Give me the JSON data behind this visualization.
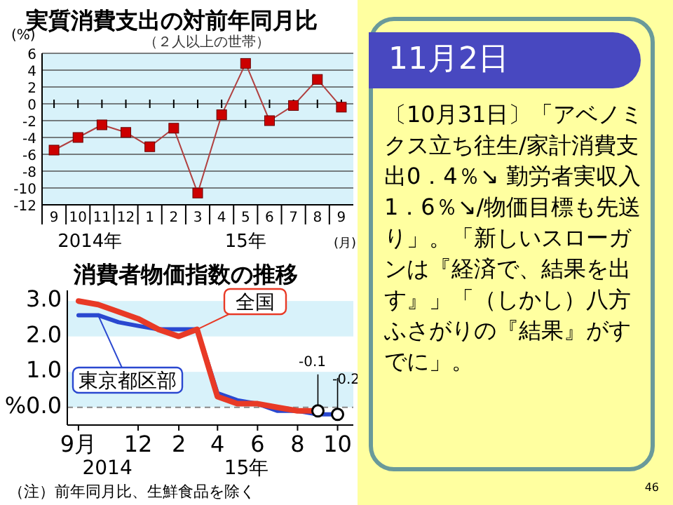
{
  "chart_data": [
    {
      "type": "line",
      "title": "実質消費支出の対前年同月比",
      "subtitle": "（２人以上の世帯）",
      "ylabel": "(%)",
      "xlabel": "(月)",
      "categories": [
        "9",
        "10",
        "11",
        "12",
        "1",
        "2",
        "3",
        "4",
        "5",
        "6",
        "7",
        "8",
        "9"
      ],
      "series": [
        {
          "color": "#cc0000",
          "values": [
            -5.5,
            -4.0,
            -2.5,
            -3.4,
            -5.1,
            -2.9,
            -10.6,
            -1.3,
            4.8,
            -2.0,
            -0.2,
            2.9,
            -0.4
          ]
        }
      ],
      "ylim": [
        -12,
        6
      ],
      "yticks": [
        -12,
        -10,
        -8,
        -6,
        -4,
        -2,
        0,
        2,
        4,
        6
      ],
      "grid": "y",
      "marker": "square",
      "line_style": "solid",
      "annotations": [
        "2014年",
        "15年"
      ]
    },
    {
      "type": "line",
      "title": "消費者物価指数の推移",
      "x": [
        "2014-09",
        "2014-10",
        "2014-11",
        "2014-12",
        "2015-01",
        "2015-02",
        "2015-03",
        "2015-04",
        "2015-05",
        "2015-06",
        "2015-07",
        "2015-08",
        "2015-09",
        "2015-10"
      ],
      "series": [
        {
          "name": "東京都区部",
          "color": "#2a48d0",
          "values": [
            2.6,
            2.6,
            2.4,
            2.3,
            2.2,
            2.2,
            2.2,
            0.4,
            0.2,
            0.1,
            -0.1,
            -0.1,
            -0.2,
            -0.2
          ]
        },
        {
          "name": "全国",
          "color": "#e83a26",
          "values": [
            3.0,
            2.9,
            2.7,
            2.5,
            2.2,
            2.0,
            2.2,
            0.3,
            0.1,
            0.1,
            0.0,
            -0.1,
            -0.1,
            null
          ]
        }
      ],
      "xlim": [
        "2014-08-15",
        "2015-10-25"
      ],
      "xticks": [
        {
          "value": "2014-09",
          "label": "9月"
        },
        {
          "value": "2014-12",
          "label": "12"
        },
        {
          "value": "2015-02",
          "label": "2"
        },
        {
          "value": "2015-04",
          "label": "4"
        },
        {
          "value": "2015-06",
          "label": "6"
        },
        {
          "value": "2015-08",
          "label": "8"
        },
        {
          "value": "2015-10",
          "label": "10"
        }
      ],
      "ylim": [
        -0.5,
        3.3
      ],
      "yticks": [
        {
          "value": 0,
          "label": "%0.0"
        },
        {
          "value": 1,
          "label": "1.0"
        },
        {
          "value": 2,
          "label": "2.0"
        },
        {
          "value": 3,
          "label": "3.0"
        }
      ],
      "bands": [
        {
          "axis": "y",
          "from": 0,
          "to": 1,
          "color": "#d8f2fa"
        },
        {
          "axis": "y",
          "from": 2,
          "to": 3,
          "color": "#d8f2fa"
        }
      ],
      "ref_lines": [
        {
          "axis": "y",
          "value": 0,
          "color": "#888888",
          "line_style": "dashed"
        }
      ],
      "line_style": "solid",
      "annotations": [
        {
          "text": "-0.1",
          "x": "2015-09",
          "y": -0.1
        },
        {
          "text": "-0.2",
          "x": "2015-10",
          "y": -0.2
        },
        "2014",
        "15年",
        "（注）前年同月比、生鮮食品を除く"
      ]
    },
    {
      "type": "other",
      "title": "11月2日",
      "annotations": [
        "〔10月31日〕「アベノミクス立ち往生/家計消費支出0．4％↘ 勤労者実収入1．6％↘/物価目標も先送り」。「新しいスローガンは『経済で、結果を出す』」「（しかし）八方ふさがりの『結果』がすでに」。",
        "46"
      ]
    }
  ]
}
